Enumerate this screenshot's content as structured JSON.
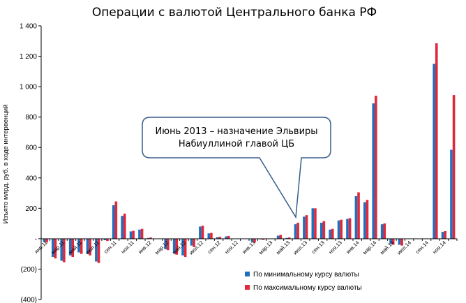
{
  "chart_data": {
    "type": "bar",
    "title": "Операции с валютой Центрального банка РФ",
    "ylabel": "Изъято млрд. руб. в ходе интервенций",
    "ylim": [
      -400,
      1400
    ],
    "yticks": [
      "1 400",
      "1 200",
      "1 000",
      "800",
      "600",
      "400",
      "200",
      "-",
      "(200)",
      "(400)"
    ],
    "grid": false,
    "legend_position": "bottom-right",
    "categories": [
      "янв.11",
      "фев.11",
      "мар.11",
      "апр.11",
      "май.11",
      "июн.11",
      "июл.11",
      "авг.11",
      "сен.11",
      "окт.11",
      "ноя.11",
      "дек.11",
      "янв.12",
      "фев.12",
      "мар.12",
      "апр.12",
      "май.12",
      "июн.12",
      "июл.12",
      "авг.12",
      "сен.12",
      "окт.12",
      "ноя.12",
      "дек.12",
      "янв.13",
      "фев.13",
      "мар.13",
      "апр.13",
      "май.13",
      "июн.13",
      "июл.13",
      "авг.13",
      "сен.13",
      "окт.13",
      "ноя.13",
      "дек.13",
      "янв.14",
      "фев.14",
      "мар.14",
      "апр.14",
      "май.14",
      "июн.14",
      "июл.14",
      "авг.14",
      "сен.14",
      "окт.14",
      "ноя.14",
      "дек.14"
    ],
    "shown_labels": [
      "янв.11",
      "мар.11",
      "май.11",
      "июл.11",
      "сен.11",
      "ноя.11",
      "янв.12",
      "мар.12",
      "май.12",
      "июл.12",
      "сен.12",
      "ноя.12",
      "янв.13",
      "мар.13",
      "май.13",
      "июл.13",
      "сен.13",
      "ноя.13",
      "янв.14",
      "мар.14",
      "май.14",
      "июл.14",
      "сен.14",
      "ноя.14"
    ],
    "series": [
      {
        "name": "По минимальному курсу валюты",
        "color": "#1f6fbf",
        "values": [
          -20,
          -120,
          -145,
          -110,
          -90,
          -100,
          -150,
          -10,
          220,
          150,
          48,
          60,
          5,
          0,
          -70,
          -95,
          -110,
          -45,
          80,
          35,
          10,
          15,
          0,
          0,
          -20,
          -5,
          0,
          20,
          5,
          95,
          145,
          200,
          105,
          60,
          120,
          130,
          280,
          240,
          890,
          95,
          -35,
          -40,
          0,
          0,
          0,
          1150,
          45,
          585
        ]
      },
      {
        "name": "По максимальному курсу валюты",
        "color": "#e0283a",
        "values": [
          -25,
          -130,
          -155,
          -120,
          -100,
          -110,
          -160,
          -15,
          245,
          165,
          52,
          65,
          8,
          0,
          -75,
          -105,
          -120,
          -55,
          85,
          38,
          12,
          18,
          0,
          0,
          -25,
          -8,
          0,
          25,
          8,
          105,
          155,
          200,
          115,
          65,
          125,
          135,
          305,
          255,
          940,
          100,
          -40,
          -45,
          0,
          0,
          0,
          1285,
          50,
          945
        ]
      }
    ],
    "annotation": {
      "lines": [
        "Июнь 2013 – назначение Эльвиры",
        "Набиуллиной главой ЦБ"
      ]
    }
  }
}
